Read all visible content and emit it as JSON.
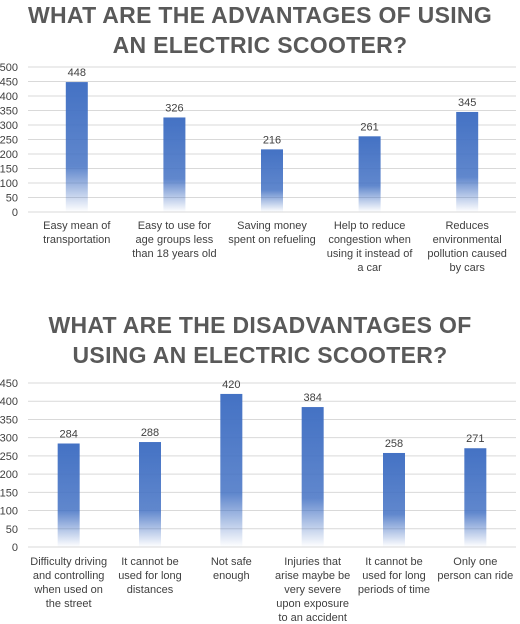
{
  "chart_data": [
    {
      "type": "bar",
      "title": "WHAT ARE THE ADVANTAGES OF USING AN ELECTRIC SCOOTER?",
      "categories": [
        "Easy mean of transportation",
        "Easy to use for age groups less than 18 years old",
        "Saving money spent on refueling",
        "Help to reduce congestion when using it instead of a car",
        "Reduces environmental pollution caused by cars"
      ],
      "values": [
        448,
        326,
        216,
        261,
        345
      ],
      "color": "#4472c4",
      "ylim": [
        0,
        500
      ],
      "yticks": [
        0,
        50,
        100,
        150,
        200,
        250,
        300,
        350,
        400,
        450,
        500
      ],
      "grid": true
    },
    {
      "type": "bar",
      "title": "WHAT ARE THE DISADVANTAGES OF USING AN ELECTRIC SCOOTER?",
      "categories": [
        "Difficulty driving and controlling when used on the street",
        "It cannot be used for long distances",
        "Not safe enough",
        "Injuries that arise maybe be very severe upon exposure to an accident",
        "It cannot be used for long periods of time",
        "Only one person can ride"
      ],
      "values": [
        284,
        288,
        420,
        384,
        258,
        271
      ],
      "color": "#4472c4",
      "ylim": [
        0,
        450
      ],
      "yticks": [
        0,
        50,
        100,
        150,
        200,
        250,
        300,
        350,
        400,
        450
      ],
      "grid": true
    }
  ]
}
